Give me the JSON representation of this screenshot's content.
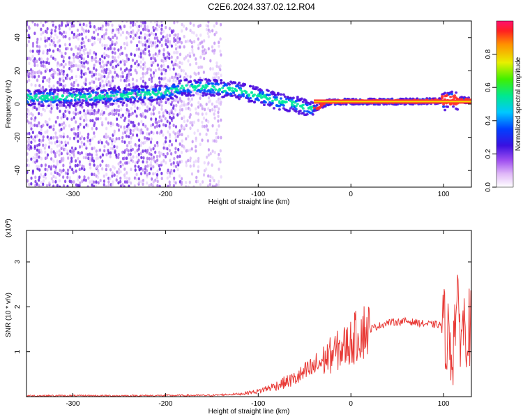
{
  "title": "C2E6.2024.337.02.12.R04",
  "chart_data": [
    {
      "type": "heatmap",
      "xlabel": "Height of straight line (km)",
      "ylabel": "Frequency (Hz)",
      "xlim": [
        -350,
        130
      ],
      "ylim": [
        -50,
        50
      ],
      "x_ticks": [
        -300,
        -200,
        -100,
        0,
        100
      ],
      "x_tick_labels": [
        "-300",
        "-200",
        "-100",
        "0",
        "100"
      ],
      "y_ticks": [
        -40,
        -20,
        0,
        20,
        40
      ],
      "y_tick_labels": [
        "-40",
        "-20",
        "0",
        "20",
        "40"
      ],
      "colorbar": {
        "label": "Normalized spectral amplitude",
        "range": [
          0,
          1
        ],
        "ticks": [
          0.0,
          0.2,
          0.4,
          0.6,
          0.8
        ],
        "tick_labels": [
          "0.0",
          "0.2",
          "0.4",
          "0.6",
          "0.8"
        ]
      },
      "ridge": {
        "x": [
          -350,
          -300,
          -250,
          -200,
          -180,
          -150,
          -120,
          -100,
          -80,
          -60,
          -45,
          -35,
          -25,
          -10,
          0,
          20,
          60,
          100,
          110,
          130
        ],
        "y": [
          4,
          4,
          5,
          7,
          10,
          10,
          8,
          5,
          2,
          0,
          -3,
          -2,
          1,
          1.5,
          1.5,
          1.5,
          1.5,
          2,
          3,
          2
        ]
      },
      "grid": false
    },
    {
      "type": "line",
      "xlabel": "Height of straight line (km)",
      "ylabel": "SNR (10 * v/v)",
      "y_multiplier_label": "(x10",
      "y_multiplier_exp": "4",
      "y_multiplier_close": ")",
      "xlim": [
        -350,
        130
      ],
      "ylim": [
        0,
        3.7
      ],
      "x_ticks": [
        -300,
        -200,
        -100,
        0,
        100
      ],
      "x_tick_labels": [
        "-300",
        "-200",
        "-100",
        "0",
        "100"
      ],
      "y_ticks": [
        1,
        2,
        3
      ],
      "y_tick_labels": [
        "1",
        "2",
        "3"
      ],
      "color": "#e83a36",
      "series": [
        {
          "x": [
            -350,
            -250,
            -150,
            -120,
            -100,
            -80,
            -60,
            -40,
            -20,
            0,
            10,
            20,
            40,
            60,
            80,
            95,
            100,
            105,
            110,
            113,
            118,
            130
          ],
          "y": [
            0.02,
            0.02,
            0.03,
            0.06,
            0.12,
            0.25,
            0.4,
            0.65,
            0.95,
            1.2,
            1.45,
            1.5,
            1.65,
            1.68,
            1.62,
            1.6,
            1.6,
            1.3,
            1.0,
            2.0,
            1.55,
            1.55
          ]
        }
      ],
      "grid": false
    }
  ]
}
